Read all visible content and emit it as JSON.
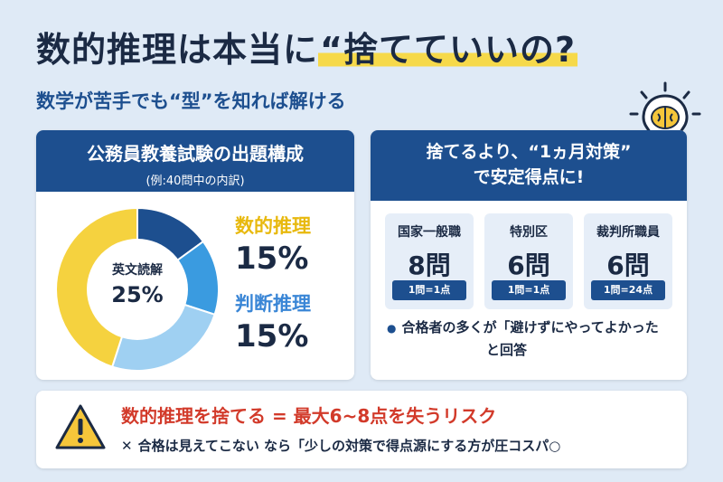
{
  "title": {
    "main": "数的推理は本当に",
    "highlight": "“捨てていいの?"
  },
  "subtitle": "数学が苦手でも“型”を知れば解ける",
  "left_card": {
    "heading": "公務員教養試験の出題構成",
    "subheading": "(例:40問中の内訳)",
    "center_label": "英文読解",
    "center_value": "25%",
    "legend": [
      {
        "name": "数的推理",
        "value": "15%",
        "color": "#f2c12e"
      },
      {
        "name": "判断推理",
        "value": "15%",
        "color": "#3a86d6"
      }
    ]
  },
  "chart_data": {
    "type": "pie",
    "labels": [
      "数的推理",
      "判断推理",
      "英文読解"
    ],
    "values": [
      15,
      15,
      25
    ],
    "colors": [
      "#1d4f8f",
      "#3a9be0",
      "#9fd0f2",
      "#f5d23f"
    ]
  },
  "right_card": {
    "heading_line1": "捨てるより、“1ヵ月対策”",
    "heading_line2": "で安定得点に!",
    "stats": [
      {
        "label": "国家一般職",
        "value": "8問",
        "note": "1問=1点"
      },
      {
        "label": "特別区",
        "value": "6問",
        "note": "1問=1点"
      },
      {
        "label": "裁判所職員",
        "value": "6問",
        "note": "1問=24点"
      }
    ],
    "note_line1": "合格者の多くが「避けずにやってよかった",
    "note_line2": "と回答"
  },
  "bottom": {
    "risk": "数的推理を捨てる = 最大6~8点を失うリスク",
    "tip": "合格は見えてこない  なら「少しの対策で得点源にする方が圧コスパ○"
  },
  "icons": {
    "bulb": "lightbulb-brain-icon",
    "warning": "warning-icon",
    "cross": "cross-icon"
  }
}
